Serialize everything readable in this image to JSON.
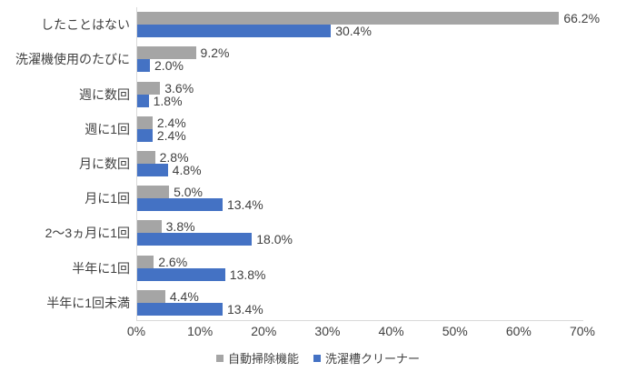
{
  "chart_data": {
    "type": "bar",
    "orientation": "horizontal",
    "title": "",
    "xlabel": "",
    "ylabel": "",
    "xlim": [
      0,
      70
    ],
    "x_ticks": [
      "0%",
      "10%",
      "20%",
      "30%",
      "40%",
      "50%",
      "60%",
      "70%"
    ],
    "grid": false,
    "legend_position": "bottom",
    "categories": [
      "したことはない",
      "洗濯機使用のたびに",
      "週に数回",
      "週に1回",
      "月に数回",
      "月に1回",
      "2～3ヵ月に1回",
      "半年に1回",
      "半年に1回未満"
    ],
    "series": [
      {
        "name": "自動掃除機能",
        "color": "#a5a5a5",
        "values": [
          66.2,
          9.2,
          3.6,
          2.4,
          2.8,
          5.0,
          3.8,
          2.6,
          4.4
        ],
        "labels": [
          "66.2%",
          "9.2%",
          "3.6%",
          "2.4%",
          "2.8%",
          "5.0%",
          "3.8%",
          "2.6%",
          "4.4%"
        ]
      },
      {
        "name": "洗濯槽クリーナー",
        "color": "#4472c4",
        "values": [
          30.4,
          2.0,
          1.8,
          2.4,
          4.8,
          13.4,
          18.0,
          13.8,
          13.4
        ],
        "labels": [
          "30.4%",
          "2.0%",
          "1.8%",
          "2.4%",
          "4.8%",
          "13.4%",
          "18.0%",
          "13.8%",
          "13.4%"
        ]
      }
    ],
    "axis_line_color": "#d9d9d9",
    "text_color": "#404040"
  }
}
